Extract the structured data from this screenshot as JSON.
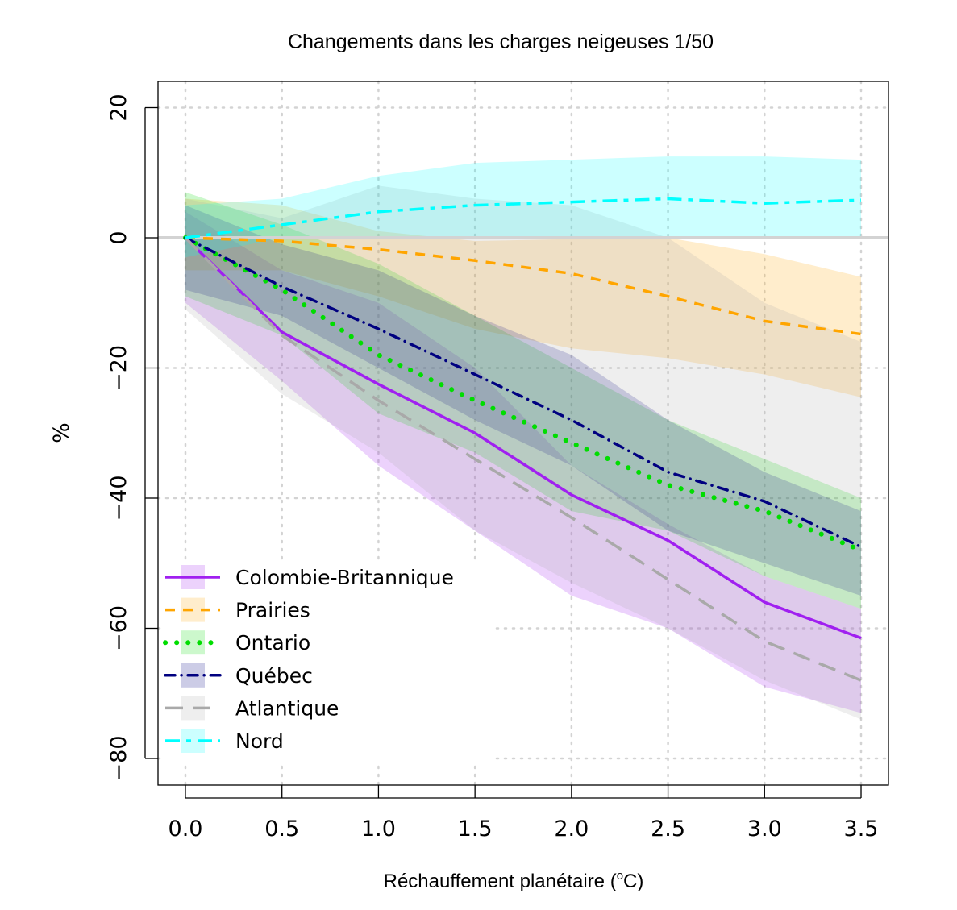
{
  "chart_data": {
    "type": "line",
    "title": "Changements dans les charges neigeuses 1/50",
    "xlabel": "Réchauffement planétaire (",
    "xlabel_sup": "o",
    "xlabel_end": "C)",
    "ylabel": "%",
    "xlim": [
      -0.15,
      3.6
    ],
    "ylim": [
      -84,
      24
    ],
    "grid": true,
    "legend_position": "bottom-left",
    "x_ticks": [
      "0.0",
      "0.5",
      "1.0",
      "1.5",
      "2.0",
      "2.5",
      "3.0",
      "3.5"
    ],
    "y_ticks": [
      "20",
      "0",
      "−20",
      "−40",
      "−60",
      "−80"
    ],
    "x": [
      0,
      0.5,
      1.0,
      1.5,
      2.0,
      2.5,
      3.0,
      3.5
    ],
    "series": [
      {
        "name": "Colombie-Britannique",
        "color": "#A020F0",
        "style": "solid",
        "values": [
          0,
          -14.5,
          -22.5,
          -30,
          -39.5,
          -46.5,
          -56,
          -61.5
        ],
        "upper": [
          4,
          -5,
          -10,
          -20,
          -35,
          -44,
          -52,
          -57
        ],
        "lower": [
          -10,
          -22,
          -35,
          -45,
          -55,
          -60,
          -69,
          -73
        ]
      },
      {
        "name": "Prairies",
        "color": "#FFA500",
        "style": "dashed",
        "values": [
          0,
          -0.5,
          -1.8,
          -3.5,
          -5.5,
          -9,
          -12.8,
          -14.8
        ],
        "upper": [
          6,
          5,
          1,
          -0.5,
          -0.2,
          0,
          -2.5,
          -6
        ],
        "lower": [
          -5,
          -5,
          -9,
          -14,
          -17,
          -18.5,
          -21,
          -24.5
        ]
      },
      {
        "name": "Ontario",
        "color": "#00DD00",
        "style": "dotted",
        "values": [
          0,
          -8,
          -18,
          -25,
          -31.5,
          -38,
          -42,
          -48
        ],
        "upper": [
          7,
          2,
          -4,
          -12,
          -20,
          -28,
          -34,
          -40
        ],
        "lower": [
          -9,
          -15,
          -27,
          -33,
          -42,
          -45,
          -52,
          -57
        ]
      },
      {
        "name": "Québec",
        "color": "#000080",
        "style": "dotdash",
        "values": [
          0,
          -7.5,
          -14,
          -21,
          -28,
          -36,
          -40.5,
          -47.5
        ],
        "upper": [
          5,
          -1,
          -5,
          -12,
          -18,
          -28,
          -36,
          -42
        ],
        "lower": [
          -8,
          -12,
          -20,
          -28,
          -35,
          -45,
          -50,
          -55
        ]
      },
      {
        "name": "Atlantique",
        "color": "#A9A9A9",
        "style": "longdash",
        "values": [
          0,
          -15,
          -25,
          -34,
          -43,
          -52.5,
          -62,
          -68
        ],
        "upper": [
          6,
          3,
          8,
          6,
          5,
          0,
          -10,
          -16
        ],
        "lower": [
          -11,
          -24,
          -33,
          -45,
          -53,
          -60,
          -68,
          -74
        ]
      },
      {
        "name": "Nord",
        "color": "#00FFFF",
        "style": "twodash",
        "values": [
          0,
          2,
          4,
          5,
          5.5,
          6,
          5.3,
          5.8
        ],
        "upper": [
          5,
          6,
          9.5,
          11.5,
          12,
          12.5,
          12.5,
          12
        ],
        "lower": [
          -3,
          0,
          0,
          0,
          0,
          0,
          0,
          0
        ]
      }
    ]
  }
}
